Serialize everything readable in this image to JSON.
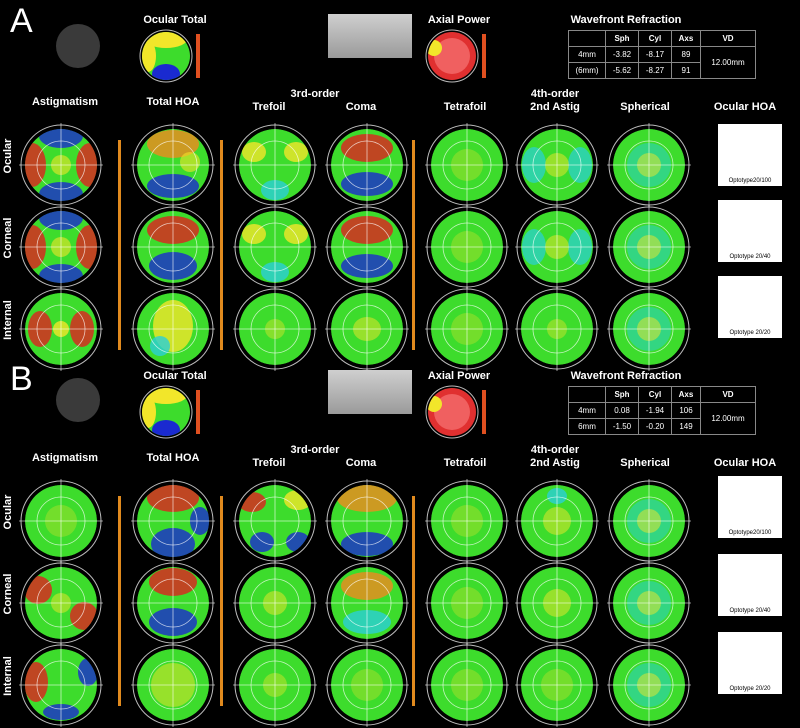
{
  "panels": [
    {
      "label": "A",
      "ocular_total": "Ocular Total",
      "axial_power": "Axial Power",
      "wavefront": {
        "title": "Wavefront Refraction",
        "headers": [
          "",
          "Sph",
          "Cyl",
          "Axs",
          "VD"
        ],
        "rows": [
          {
            "zone": "4mm",
            "sph": "-3.82",
            "cyl": "-8.17",
            "axs": "89"
          },
          {
            "zone": "(6mm)",
            "sph": "-5.62",
            "cyl": "-8.27",
            "axs": "91"
          }
        ],
        "vd": "12.00mm"
      },
      "col_headers": {
        "astig": "Astigmatism",
        "total_hoa": "Total HOA",
        "third_order": "3rd-order",
        "trefoil": "Trefoil",
        "coma": "Coma",
        "tetrafoil": "Tetrafoil",
        "fourth_order": "4th-order",
        "second_astig": "2nd Astig",
        "spherical": "Spherical",
        "ocular_hoa": "Ocular HOA"
      },
      "row_labels": [
        "Ocular",
        "Corneal",
        "Internal"
      ],
      "optotypes": [
        "Optotype20/100",
        "Optotype 20/40",
        "Optotype 20/20"
      ]
    },
    {
      "label": "B",
      "ocular_total": "Ocular Total",
      "axial_power": "Axial Power",
      "wavefront": {
        "title": "Wavefront Refraction",
        "headers": [
          "",
          "Sph",
          "Cyl",
          "Axs",
          "VD"
        ],
        "rows": [
          {
            "zone": "4mm",
            "sph": "0.08",
            "cyl": "-1.94",
            "axs": "106"
          },
          {
            "zone": "6mm",
            "sph": "-1.50",
            "cyl": "-0.20",
            "axs": "149"
          }
        ],
        "vd": "12.00mm"
      },
      "col_headers": {
        "astig": "Astigmatism",
        "total_hoa": "Total HOA",
        "third_order": "3rd-order",
        "trefoil": "Trefoil",
        "coma": "Coma",
        "tetrafoil": "Tetrafoil",
        "fourth_order": "4th-order",
        "second_astig": "2nd Astig",
        "spherical": "Spherical",
        "ocular_hoa": "Ocular HOA"
      },
      "row_labels": [
        "Ocular",
        "Corneal",
        "Internal"
      ],
      "optotypes": [
        "Optotype20/100",
        "Optotype 20/40",
        "Optotype 20/20"
      ]
    }
  ],
  "colors": {
    "separator": "#e08a1e",
    "flat": "#3ddc2c",
    "high": "#e02020",
    "low": "#1a2ad0"
  }
}
